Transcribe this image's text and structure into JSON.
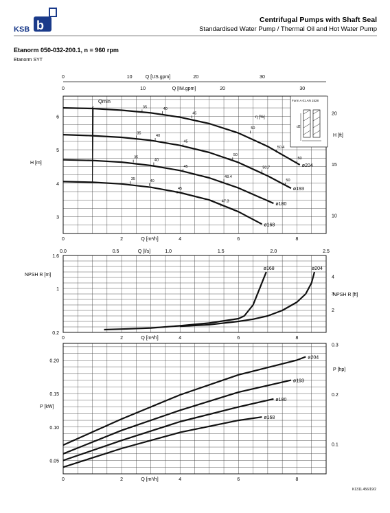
{
  "header": {
    "brand": "KSB",
    "title": "Centrifugal Pumps with Shaft Seal",
    "subtitle": "Standardised Water Pump / Thermal Oil and Hot Water Pump",
    "model": "Etanorm 050-032-200.1, n = 960 rpm",
    "series": "Etanorm SYT",
    "doc_id": "K1311.456/19/2"
  },
  "inset": {
    "label": "Form A 01 AN 1528",
    "dim_label": "d2"
  },
  "chart_data": [
    {
      "id": "head",
      "type": "line",
      "top_axis_labels": [
        "Q [US.gpm]",
        "Q [IM.gpm]"
      ],
      "top_ticks_us": [
        0,
        10,
        20,
        30
      ],
      "top_ticks_im": [
        0,
        10,
        20,
        30
      ],
      "xlabel": "Q [m³/h]",
      "ylabel": "H [m]",
      "ylabel_right": "H [ft]",
      "xlim": [
        0,
        9.0
      ],
      "ylim": [
        2.5,
        6.6
      ],
      "xticks": [
        0,
        2,
        4,
        6,
        8
      ],
      "yticks": [
        3,
        4,
        5,
        6
      ],
      "yticks_right": [
        10,
        15,
        20
      ],
      "grid": true,
      "qmin_label": "Qmin",
      "qmin_x": 1.0,
      "eta_label": "η [%]",
      "series": [
        {
          "name": "ø204",
          "x": [
            0,
            1,
            2,
            3,
            4,
            5,
            6,
            7,
            8,
            8.1
          ],
          "y": [
            6.25,
            6.23,
            6.18,
            6.1,
            5.97,
            5.78,
            5.5,
            5.1,
            4.6,
            4.55
          ]
        },
        {
          "name": "ø193",
          "x": [
            0,
            1,
            2,
            3,
            4,
            5,
            6,
            7,
            7.8
          ],
          "y": [
            5.45,
            5.42,
            5.37,
            5.28,
            5.13,
            4.92,
            4.62,
            4.22,
            3.85
          ]
        },
        {
          "name": "ø180",
          "x": [
            0,
            1,
            2,
            3,
            4,
            5,
            6,
            7.2
          ],
          "y": [
            4.7,
            4.68,
            4.63,
            4.53,
            4.38,
            4.16,
            3.86,
            3.4
          ]
        },
        {
          "name": "ø168",
          "x": [
            0,
            1,
            2,
            3,
            4,
            5,
            6,
            6.8
          ],
          "y": [
            4.05,
            4.03,
            3.98,
            3.88,
            3.72,
            3.5,
            3.15,
            2.78
          ]
        }
      ],
      "efficiency_labels": [
        {
          "text": "35",
          "x": 2.7,
          "y": 6.18
        },
        {
          "text": "40",
          "x": 3.4,
          "y": 6.13
        },
        {
          "text": "45",
          "x": 4.4,
          "y": 6.0
        },
        {
          "text": "50",
          "x": 6.4,
          "y": 5.55
        },
        {
          "text": "50.4",
          "x": 7.3,
          "y": 4.98
        },
        {
          "text": "50",
          "x": 8.0,
          "y": 4.65
        },
        {
          "text": "35",
          "x": 2.5,
          "y": 5.4
        },
        {
          "text": "40",
          "x": 3.15,
          "y": 5.33
        },
        {
          "text": "45",
          "x": 4.1,
          "y": 5.15
        },
        {
          "text": "50",
          "x": 5.8,
          "y": 4.75
        },
        {
          "text": "50.7",
          "x": 6.8,
          "y": 4.38
        },
        {
          "text": "50",
          "x": 7.6,
          "y": 4.0
        },
        {
          "text": "35",
          "x": 2.4,
          "y": 4.68
        },
        {
          "text": "40",
          "x": 3.1,
          "y": 4.6
        },
        {
          "text": "45",
          "x": 4.1,
          "y": 4.41
        },
        {
          "text": "48.4",
          "x": 5.5,
          "y": 4.1
        },
        {
          "text": "35",
          "x": 2.3,
          "y": 4.04
        },
        {
          "text": "40",
          "x": 2.95,
          "y": 3.98
        },
        {
          "text": "45",
          "x": 3.9,
          "y": 3.75
        },
        {
          "text": "47.3",
          "x": 5.4,
          "y": 3.37
        }
      ]
    },
    {
      "id": "npsh",
      "type": "line",
      "top_axis_label": "Q [l/s]",
      "top_ticks": [
        "0.0",
        "0.5",
        "1.0",
        "1.5",
        "2.0",
        "2.5"
      ],
      "xlabel": "Q [m³/h]",
      "ylabel": "NPSH R [m]",
      "ylabel_right": "NPSH R [ft]",
      "xlim": [
        0,
        9.0
      ],
      "ylim": [
        0.2,
        1.6
      ],
      "xticks": [
        0,
        2,
        4,
        6,
        8
      ],
      "yticks": [
        0.2,
        1,
        1.6
      ],
      "yticks_right": [
        2,
        3,
        4
      ],
      "grid": true,
      "series": [
        {
          "name": "ø168",
          "x": [
            1.4,
            2,
            3,
            4,
            5,
            6,
            6.2,
            6.5,
            6.8,
            6.95
          ],
          "y": [
            0.25,
            0.26,
            0.28,
            0.32,
            0.37,
            0.45,
            0.5,
            0.7,
            1.1,
            1.3
          ]
        },
        {
          "name": "ø204",
          "x": [
            4,
            5,
            6,
            6.5,
            7,
            7.5,
            8,
            8.3,
            8.5,
            8.6
          ],
          "y": [
            0.31,
            0.34,
            0.4,
            0.44,
            0.5,
            0.6,
            0.75,
            0.9,
            1.1,
            1.3
          ]
        }
      ]
    },
    {
      "id": "power",
      "type": "line",
      "xlabel": "Q [m³/h]",
      "ylabel": "P [kW]",
      "ylabel_right": "P [hp]",
      "xlim": [
        0,
        9.0
      ],
      "ylim": [
        0.03,
        0.225
      ],
      "xticks": [
        0,
        2,
        4,
        6,
        8
      ],
      "yticks": [
        "0.05",
        "0.10",
        "0.15",
        "0.20"
      ],
      "yticks_right": [
        "0.1",
        "0.2",
        "0.3"
      ],
      "grid": true,
      "series": [
        {
          "name": "ø204",
          "x": [
            0,
            2,
            4,
            6,
            8,
            8.3
          ],
          "y": [
            0.073,
            0.112,
            0.148,
            0.178,
            0.2,
            0.205
          ]
        },
        {
          "name": "ø193",
          "x": [
            0,
            2,
            4,
            6,
            7.8
          ],
          "y": [
            0.06,
            0.095,
            0.125,
            0.152,
            0.17
          ]
        },
        {
          "name": "ø180",
          "x": [
            0,
            2,
            4,
            6,
            7.2
          ],
          "y": [
            0.05,
            0.08,
            0.108,
            0.13,
            0.142
          ]
        },
        {
          "name": "ø168",
          "x": [
            0,
            2,
            4,
            6,
            6.8
          ],
          "y": [
            0.04,
            0.068,
            0.092,
            0.11,
            0.115
          ]
        }
      ]
    }
  ]
}
